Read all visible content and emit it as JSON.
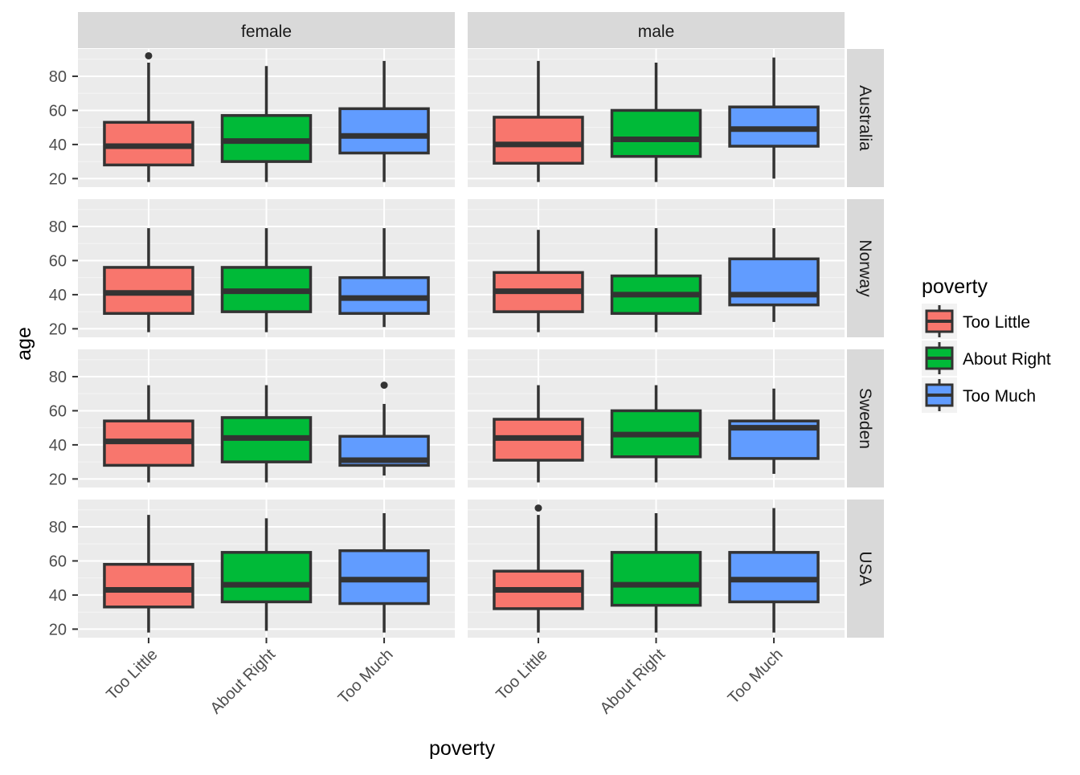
{
  "chart_data": {
    "type": "boxplot",
    "xlabel": "poverty",
    "ylabel": "age",
    "categories": [
      "Too Little",
      "About Right",
      "Too Much"
    ],
    "col_facets": [
      "female",
      "male"
    ],
    "row_facets": [
      "Australia",
      "Norway",
      "Sweden",
      "USA"
    ],
    "y_ticks": [
      20,
      40,
      60,
      80
    ],
    "ylim": [
      15,
      96
    ],
    "legend": {
      "title": "poverty",
      "position": "right",
      "items": [
        "Too Little",
        "About Right",
        "Too Much"
      ]
    },
    "colors": {
      "Too Little": "#F8766D",
      "About Right": "#00BA38",
      "Too Much": "#619CFF",
      "panel_bg": "#EBEBEB",
      "strip_bg": "#D9D9D9",
      "box_line": "#333333"
    },
    "grid": true,
    "panels": [
      {
        "row": "Australia",
        "col": "female",
        "boxes": [
          {
            "category": "Too Little",
            "min": 18,
            "q1": 28,
            "median": 39,
            "q3": 53,
            "max": 88,
            "outliers": [
              92
            ]
          },
          {
            "category": "About Right",
            "min": 18,
            "q1": 30,
            "median": 42,
            "q3": 57,
            "max": 86,
            "outliers": []
          },
          {
            "category": "Too Much",
            "min": 18,
            "q1": 35,
            "median": 45,
            "q3": 61,
            "max": 89,
            "outliers": []
          }
        ]
      },
      {
        "row": "Australia",
        "col": "male",
        "boxes": [
          {
            "category": "Too Little",
            "min": 18,
            "q1": 29,
            "median": 40,
            "q3": 56,
            "max": 89,
            "outliers": []
          },
          {
            "category": "About Right",
            "min": 18,
            "q1": 33,
            "median": 43,
            "q3": 60,
            "max": 88,
            "outliers": []
          },
          {
            "category": "Too Much",
            "min": 20,
            "q1": 39,
            "median": 49,
            "q3": 62,
            "max": 91,
            "outliers": []
          }
        ]
      },
      {
        "row": "Norway",
        "col": "female",
        "boxes": [
          {
            "category": "Too Little",
            "min": 18,
            "q1": 29,
            "median": 41,
            "q3": 56,
            "max": 79,
            "outliers": []
          },
          {
            "category": "About Right",
            "min": 18,
            "q1": 30,
            "median": 42,
            "q3": 56,
            "max": 79,
            "outliers": []
          },
          {
            "category": "Too Much",
            "min": 21,
            "q1": 29,
            "median": 38,
            "q3": 50,
            "max": 79,
            "outliers": []
          }
        ]
      },
      {
        "row": "Norway",
        "col": "male",
        "boxes": [
          {
            "category": "Too Little",
            "min": 18,
            "q1": 30,
            "median": 42,
            "q3": 53,
            "max": 78,
            "outliers": []
          },
          {
            "category": "About Right",
            "min": 18,
            "q1": 29,
            "median": 40,
            "q3": 51,
            "max": 79,
            "outliers": []
          },
          {
            "category": "Too Much",
            "min": 24,
            "q1": 34,
            "median": 40,
            "q3": 61,
            "max": 79,
            "outliers": []
          }
        ]
      },
      {
        "row": "Sweden",
        "col": "female",
        "boxes": [
          {
            "category": "Too Little",
            "min": 18,
            "q1": 28,
            "median": 42,
            "q3": 54,
            "max": 75,
            "outliers": []
          },
          {
            "category": "About Right",
            "min": 18,
            "q1": 30,
            "median": 44,
            "q3": 56,
            "max": 75,
            "outliers": []
          },
          {
            "category": "Too Much",
            "min": 22,
            "q1": 28,
            "median": 31,
            "q3": 45,
            "max": 64,
            "outliers": [
              75
            ]
          }
        ]
      },
      {
        "row": "Sweden",
        "col": "male",
        "boxes": [
          {
            "category": "Too Little",
            "min": 18,
            "q1": 31,
            "median": 44,
            "q3": 55,
            "max": 75,
            "outliers": []
          },
          {
            "category": "About Right",
            "min": 18,
            "q1": 33,
            "median": 46,
            "q3": 60,
            "max": 75,
            "outliers": []
          },
          {
            "category": "Too Much",
            "min": 23,
            "q1": 32,
            "median": 50,
            "q3": 54,
            "max": 73,
            "outliers": []
          }
        ]
      },
      {
        "row": "USA",
        "col": "female",
        "boxes": [
          {
            "category": "Too Little",
            "min": 18,
            "q1": 33,
            "median": 43,
            "q3": 58,
            "max": 87,
            "outliers": []
          },
          {
            "category": "About Right",
            "min": 19,
            "q1": 36,
            "median": 46,
            "q3": 65,
            "max": 85,
            "outliers": []
          },
          {
            "category": "Too Much",
            "min": 18,
            "q1": 35,
            "median": 49,
            "q3": 66,
            "max": 88,
            "outliers": []
          }
        ]
      },
      {
        "row": "USA",
        "col": "male",
        "boxes": [
          {
            "category": "Too Little",
            "min": 18,
            "q1": 32,
            "median": 43,
            "q3": 54,
            "max": 87,
            "outliers": [
              91
            ]
          },
          {
            "category": "About Right",
            "min": 18,
            "q1": 34,
            "median": 46,
            "q3": 65,
            "max": 88,
            "outliers": []
          },
          {
            "category": "Too Much",
            "min": 18,
            "q1": 36,
            "median": 49,
            "q3": 65,
            "max": 91,
            "outliers": []
          }
        ]
      }
    ]
  }
}
